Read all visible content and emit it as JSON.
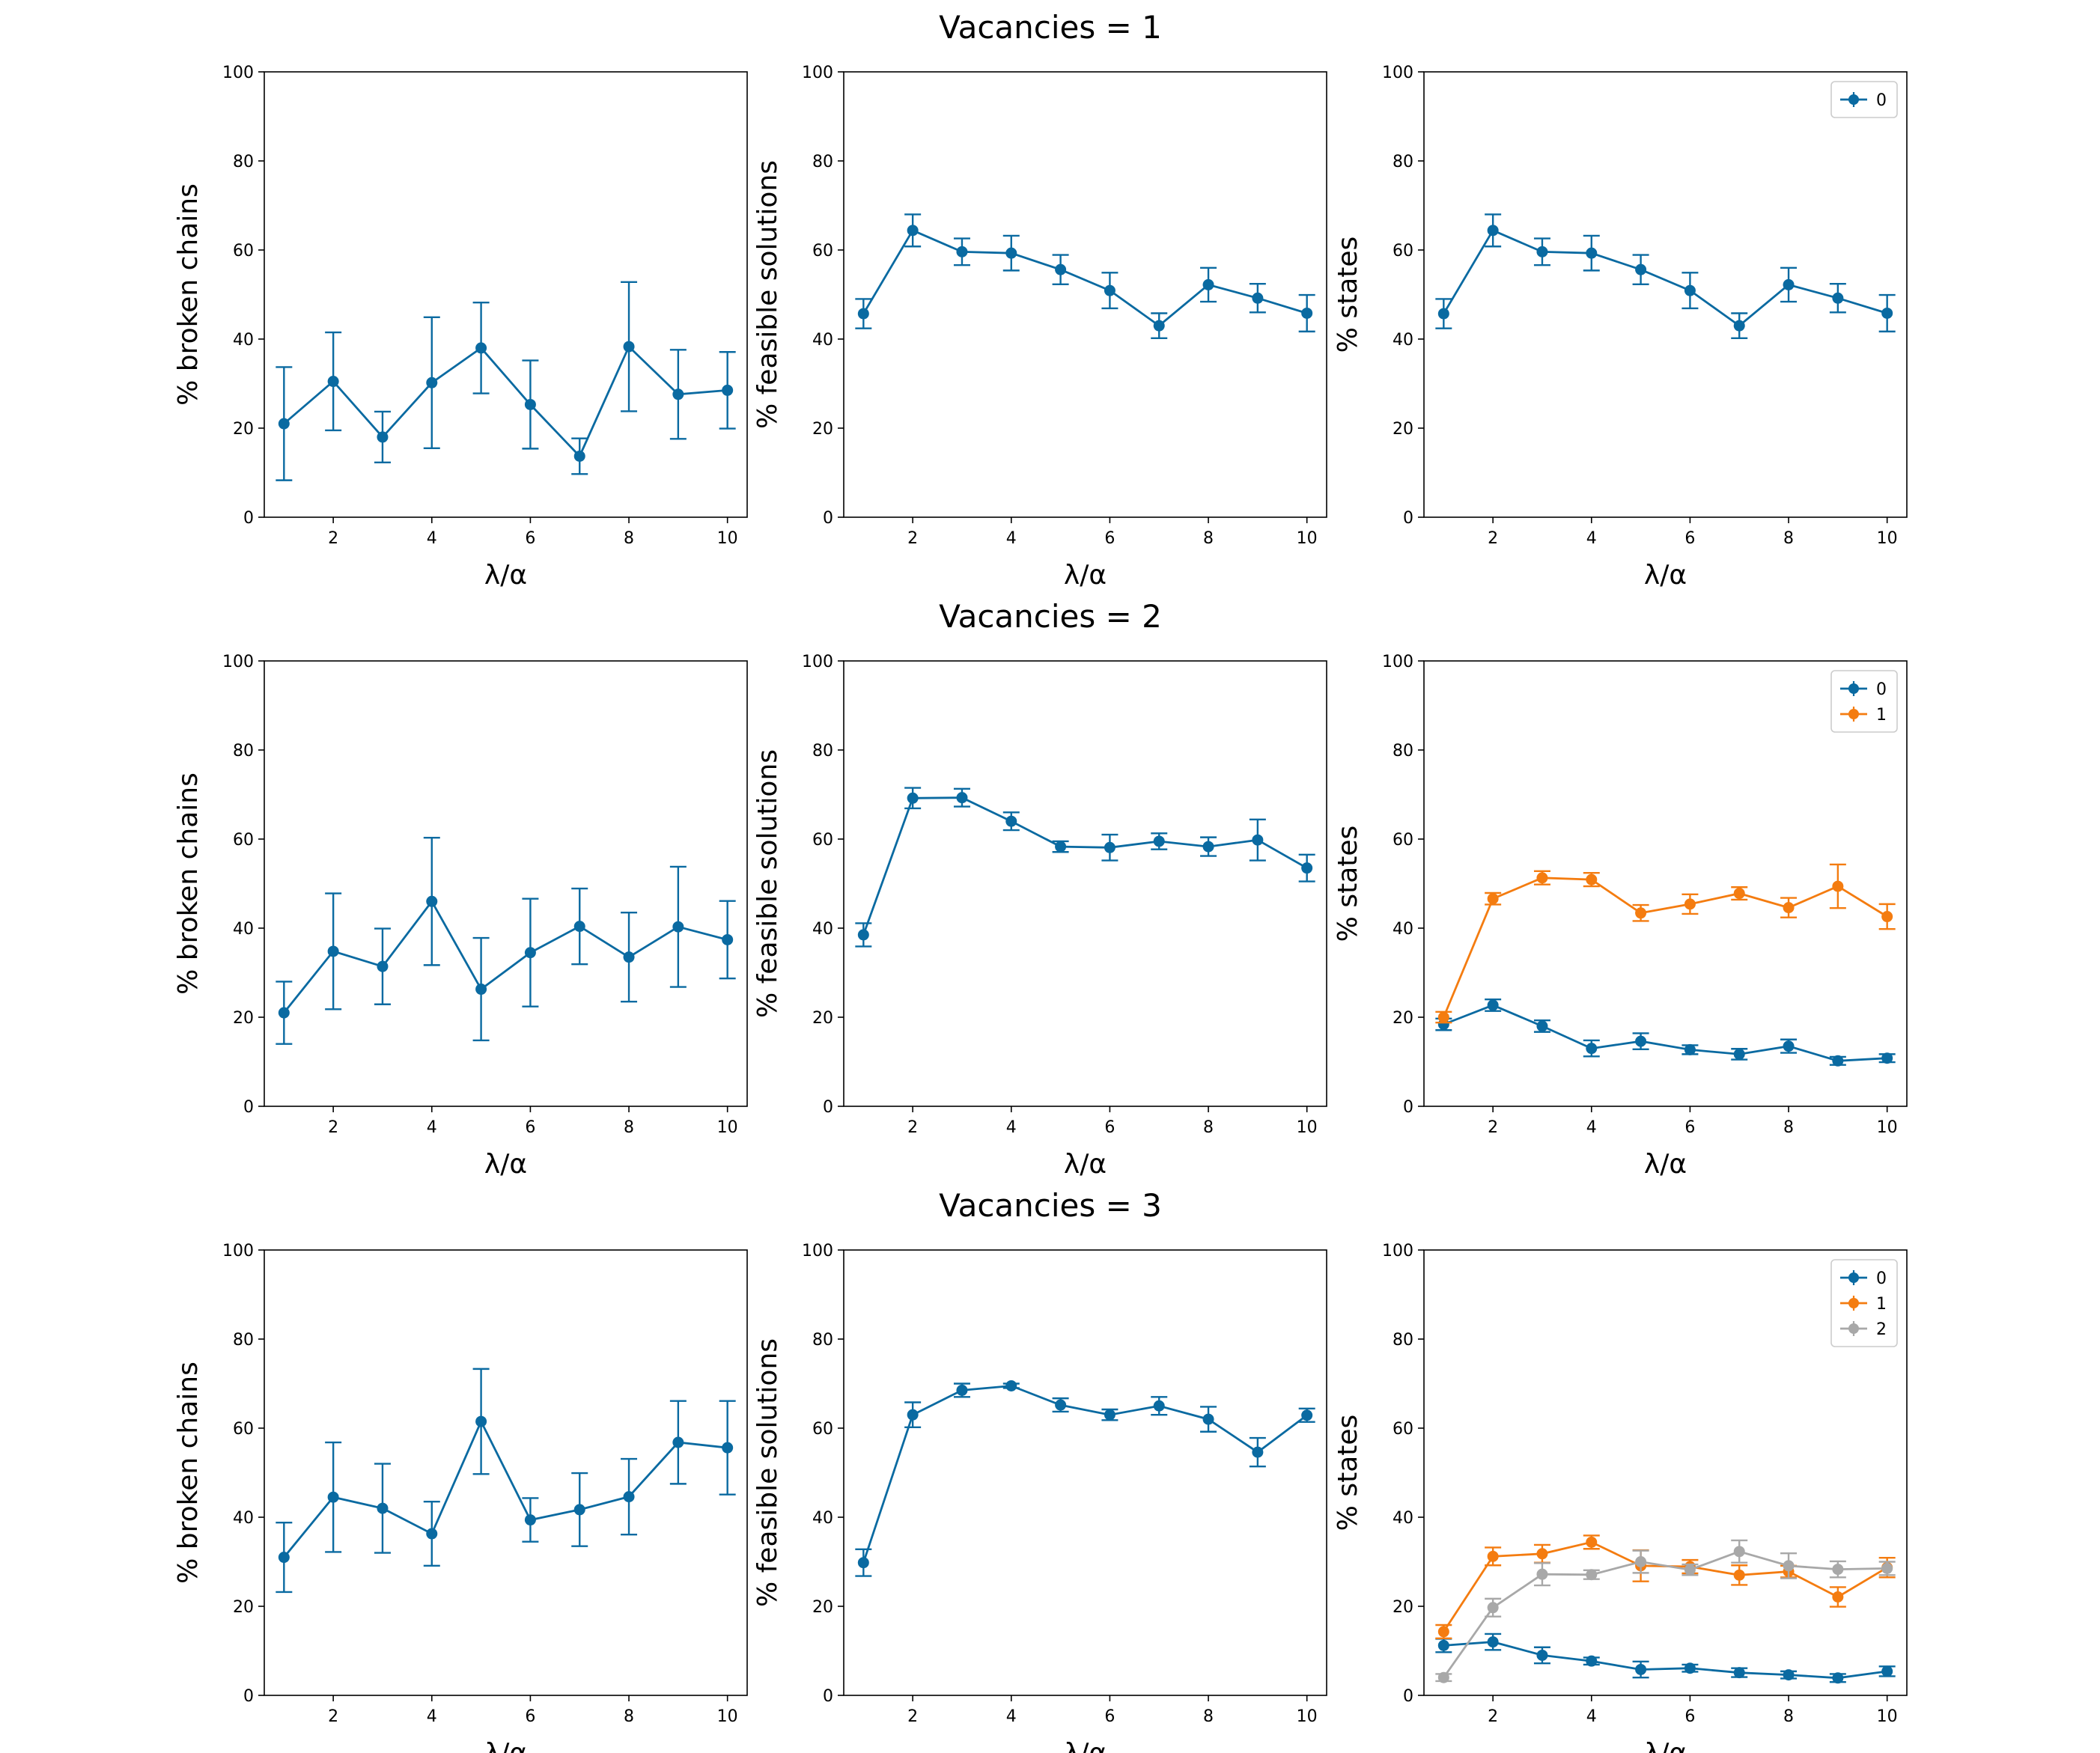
{
  "row_titles": [
    "Vacancies = 1",
    "Vacancies = 2",
    "Vacancies = 3"
  ],
  "colors": {
    "0": "#0a6aa1",
    "1": "#f47c10",
    "2": "#a8a8a8"
  },
  "chart_data": [
    {
      "type": "line",
      "panel": "row1-broken",
      "xlabel": "λ/α",
      "ylabel": "% broken chains",
      "ylim": [
        0,
        100
      ],
      "yticks": [
        0,
        20,
        40,
        60,
        80,
        100
      ],
      "xlim": [
        0.6,
        10.4
      ],
      "xticks": [
        2,
        4,
        6,
        8,
        10
      ],
      "grid": false,
      "x": [
        1,
        2,
        3,
        4,
        5,
        6,
        7,
        8,
        9,
        10
      ],
      "series": [
        {
          "key": "0",
          "values": [
            21,
            30.5,
            18,
            30.2,
            38,
            25.3,
            13.7,
            38.3,
            27.6,
            28.5
          ],
          "errors": [
            12.7,
            11,
            5.7,
            14.7,
            10.2,
            9.9,
            4,
            14.5,
            10,
            8.6
          ]
        }
      ]
    },
    {
      "type": "line",
      "panel": "row1-feasible",
      "xlabel": "λ/α",
      "ylabel": "% feasible solutions",
      "ylim": [
        0,
        100
      ],
      "yticks": [
        0,
        20,
        40,
        60,
        80,
        100
      ],
      "xlim": [
        0.6,
        10.4
      ],
      "xticks": [
        2,
        4,
        6,
        8,
        10
      ],
      "grid": false,
      "x": [
        1,
        2,
        3,
        4,
        5,
        6,
        7,
        8,
        9,
        10
      ],
      "series": [
        {
          "key": "0",
          "values": [
            45.7,
            64.4,
            59.6,
            59.3,
            55.6,
            50.9,
            43,
            52.2,
            49.2,
            45.8
          ],
          "errors": [
            3.3,
            3.6,
            3,
            3.9,
            3.3,
            4,
            2.8,
            3.8,
            3.2,
            4.1
          ]
        }
      ]
    },
    {
      "type": "line",
      "panel": "row1-states",
      "xlabel": "λ/α",
      "ylabel": "% states",
      "ylim": [
        0,
        100
      ],
      "yticks": [
        0,
        20,
        40,
        60,
        80,
        100
      ],
      "xlim": [
        0.6,
        10.4
      ],
      "xticks": [
        2,
        4,
        6,
        8,
        10
      ],
      "grid": false,
      "legend": "top-right",
      "x": [
        1,
        2,
        3,
        4,
        5,
        6,
        7,
        8,
        9,
        10
      ],
      "series": [
        {
          "name": "0",
          "key": "0",
          "values": [
            45.7,
            64.4,
            59.6,
            59.3,
            55.6,
            50.9,
            43,
            52.2,
            49.2,
            45.8
          ],
          "errors": [
            3.3,
            3.6,
            3,
            3.9,
            3.3,
            4,
            2.8,
            3.8,
            3.2,
            4.1
          ]
        }
      ]
    },
    {
      "type": "line",
      "panel": "row2-broken",
      "xlabel": "λ/α",
      "ylabel": "% broken chains",
      "ylim": [
        0,
        100
      ],
      "yticks": [
        0,
        20,
        40,
        60,
        80,
        100
      ],
      "xlim": [
        0.6,
        10.4
      ],
      "xticks": [
        2,
        4,
        6,
        8,
        10
      ],
      "grid": false,
      "x": [
        1,
        2,
        3,
        4,
        5,
        6,
        7,
        8,
        9,
        10
      ],
      "series": [
        {
          "key": "0",
          "values": [
            21,
            34.8,
            31.4,
            46,
            26.3,
            34.5,
            40.4,
            33.5,
            40.3,
            37.4
          ],
          "errors": [
            7,
            13,
            8.5,
            14.3,
            11.5,
            12.1,
            8.5,
            10,
            13.5,
            8.7
          ]
        }
      ]
    },
    {
      "type": "line",
      "panel": "row2-feasible",
      "xlabel": "λ/α",
      "ylabel": "% feasible solutions",
      "ylim": [
        0,
        100
      ],
      "yticks": [
        0,
        20,
        40,
        60,
        80,
        100
      ],
      "xlim": [
        0.6,
        10.4
      ],
      "xticks": [
        2,
        4,
        6,
        8,
        10
      ],
      "grid": false,
      "x": [
        1,
        2,
        3,
        4,
        5,
        6,
        7,
        8,
        9,
        10
      ],
      "series": [
        {
          "key": "0",
          "values": [
            38.5,
            69.2,
            69.3,
            64,
            58.3,
            58.1,
            59.5,
            58.3,
            59.8,
            53.5
          ],
          "errors": [
            2.6,
            2.3,
            2,
            2,
            1.2,
            2.9,
            1.8,
            2.1,
            4.6,
            3
          ]
        }
      ]
    },
    {
      "type": "line",
      "panel": "row2-states",
      "xlabel": "λ/α",
      "ylabel": "% states",
      "ylim": [
        0,
        100
      ],
      "yticks": [
        0,
        20,
        40,
        60,
        80,
        100
      ],
      "xlim": [
        0.6,
        10.4
      ],
      "xticks": [
        2,
        4,
        6,
        8,
        10
      ],
      "grid": false,
      "legend": "top-right",
      "x": [
        1,
        2,
        3,
        4,
        5,
        6,
        7,
        8,
        9,
        10
      ],
      "series": [
        {
          "name": "0",
          "key": "0",
          "values": [
            18.4,
            22.7,
            18,
            13,
            14.6,
            12.7,
            11.7,
            13.5,
            10.2,
            10.8
          ],
          "errors": [
            1.3,
            1.3,
            1.3,
            1.8,
            1.8,
            1,
            1.2,
            1.5,
            0.9,
            0.9
          ]
        },
        {
          "name": "1",
          "key": "1",
          "values": [
            20,
            46.6,
            51.3,
            50.9,
            43.4,
            45.4,
            47.8,
            44.6,
            49.4,
            42.6
          ],
          "errors": [
            1.2,
            1.3,
            1.5,
            1.5,
            1.8,
            2.2,
            1.4,
            2.2,
            4.9,
            2.8
          ]
        }
      ]
    },
    {
      "type": "line",
      "panel": "row3-broken",
      "xlabel": "λ/α",
      "ylabel": "% broken chains",
      "ylim": [
        0,
        100
      ],
      "yticks": [
        0,
        20,
        40,
        60,
        80,
        100
      ],
      "xlim": [
        0.6,
        10.4
      ],
      "xticks": [
        2,
        4,
        6,
        8,
        10
      ],
      "grid": false,
      "x": [
        1,
        2,
        3,
        4,
        5,
        6,
        7,
        8,
        9,
        10
      ],
      "series": [
        {
          "key": "0",
          "values": [
            31,
            44.5,
            42,
            36.3,
            61.5,
            39.4,
            41.7,
            44.6,
            56.8,
            55.6
          ],
          "errors": [
            7.8,
            12.3,
            10,
            7.2,
            11.8,
            4.9,
            8.2,
            8.5,
            9.3,
            10.5
          ]
        }
      ]
    },
    {
      "type": "line",
      "panel": "row3-feasible",
      "xlabel": "λ/α",
      "ylabel": "% feasible solutions",
      "ylim": [
        0,
        100
      ],
      "yticks": [
        0,
        20,
        40,
        60,
        80,
        100
      ],
      "xlim": [
        0.6,
        10.4
      ],
      "xticks": [
        2,
        4,
        6,
        8,
        10
      ],
      "grid": false,
      "x": [
        1,
        2,
        3,
        4,
        5,
        6,
        7,
        8,
        9,
        10
      ],
      "series": [
        {
          "key": "0",
          "values": [
            29.8,
            63,
            68.5,
            69.5,
            65.2,
            63,
            65,
            62,
            54.6,
            62.9
          ],
          "errors": [
            3,
            2.8,
            1.5,
            0.5,
            1.5,
            1.2,
            2,
            2.8,
            3.2,
            1.5
          ]
        }
      ]
    },
    {
      "type": "line",
      "panel": "row3-states",
      "xlabel": "λ/α",
      "ylabel": "% states",
      "ylim": [
        0,
        100
      ],
      "yticks": [
        0,
        20,
        40,
        60,
        80,
        100
      ],
      "xlim": [
        0.6,
        10.4
      ],
      "xticks": [
        2,
        4,
        6,
        8,
        10
      ],
      "grid": false,
      "legend": "top-right",
      "x": [
        1,
        2,
        3,
        4,
        5,
        6,
        7,
        8,
        9,
        10
      ],
      "series": [
        {
          "name": "0",
          "key": "0",
          "values": [
            11.2,
            12,
            9,
            7.7,
            5.8,
            6.1,
            5.1,
            4.6,
            3.9,
            5.4
          ],
          "errors": [
            1.5,
            1.8,
            1.8,
            0.8,
            1.8,
            0.8,
            1,
            0.8,
            0.9,
            1.1
          ]
        },
        {
          "name": "1",
          "key": "1",
          "values": [
            14.3,
            31.2,
            31.8,
            34.4,
            29.1,
            28.9,
            27,
            27.8,
            22.1,
            28.7
          ],
          "errors": [
            1.5,
            2,
            2,
            1.5,
            3.5,
            1.5,
            2.2,
            1.3,
            2.2,
            2.2
          ]
        },
        {
          "name": "2",
          "key": "2",
          "values": [
            4,
            19.7,
            27.2,
            27.1,
            30,
            28.2,
            32.3,
            29.1,
            28.3,
            28.5
          ],
          "errors": [
            0.8,
            2,
            2.5,
            1,
            2.5,
            1.2,
            2.5,
            2.8,
            1.8,
            1.5
          ]
        }
      ]
    }
  ]
}
